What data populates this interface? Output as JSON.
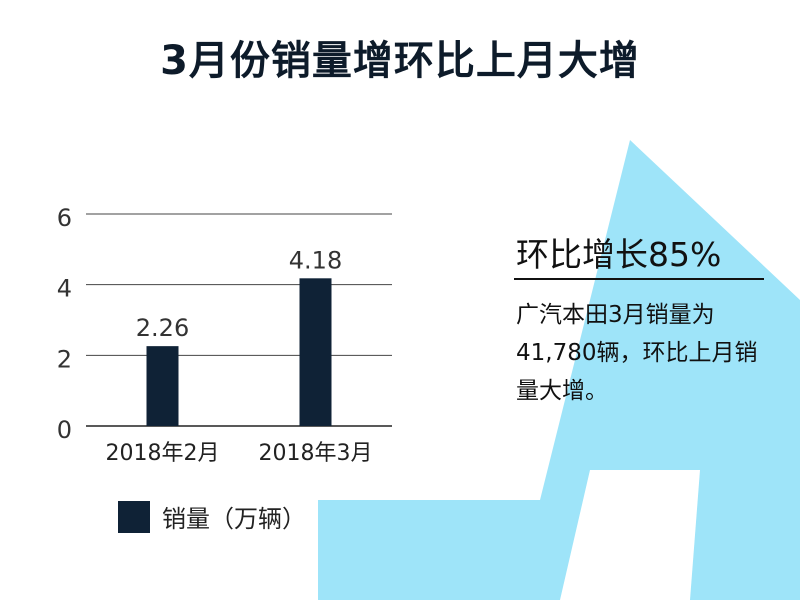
{
  "page": {
    "title": "3月份销量增环比上月大增",
    "accent_color": "#9ee4f9",
    "bar_color": "#0f2236"
  },
  "sidebar": {
    "heading": "环比增长85%",
    "body": "广汽本田3月销量为41,780辆，环比上月销量大增。"
  },
  "chart_data": {
    "type": "bar",
    "categories": [
      "2018年2月",
      "2018年3月"
    ],
    "series": [
      {
        "name": "销量（万辆）",
        "values": [
          2.26,
          4.18
        ]
      }
    ],
    "data_labels": [
      "2.26",
      "4.18"
    ],
    "yticks": [
      0,
      2,
      4,
      6
    ],
    "ylim": [
      0,
      6
    ],
    "grid": true,
    "legend": "bottom"
  }
}
